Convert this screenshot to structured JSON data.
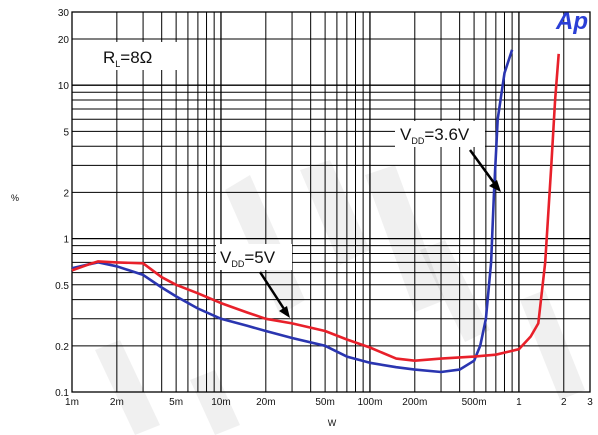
{
  "chart_data": {
    "type": "line",
    "title": "",
    "xlabel": "W",
    "ylabel": "%",
    "x_scale": "log",
    "y_scale": "log",
    "xlim": [
      0.001,
      3
    ],
    "ylim": [
      0.1,
      30
    ],
    "grid": true,
    "x_tick_labels": [
      {
        "value": 0.001,
        "label": "1m"
      },
      {
        "value": 0.002,
        "label": "2m"
      },
      {
        "value": 0.005,
        "label": "5m"
      },
      {
        "value": 0.01,
        "label": "10m"
      },
      {
        "value": 0.02,
        "label": "20m"
      },
      {
        "value": 0.05,
        "label": "50m"
      },
      {
        "value": 0.1,
        "label": "100m"
      },
      {
        "value": 0.2,
        "label": "200m"
      },
      {
        "value": 0.5,
        "label": "500m"
      },
      {
        "value": 1,
        "label": "1"
      },
      {
        "value": 2,
        "label": "2"
      },
      {
        "value": 3,
        "label": "3"
      }
    ],
    "y_tick_labels": [
      {
        "value": 0.1,
        "label": "0.1"
      },
      {
        "value": 0.2,
        "label": "0.2"
      },
      {
        "value": 0.5,
        "label": "0.5"
      },
      {
        "value": 1,
        "label": "1"
      },
      {
        "value": 2,
        "label": "2"
      },
      {
        "value": 5,
        "label": "5"
      },
      {
        "value": 10,
        "label": "10"
      },
      {
        "value": 20,
        "label": "20"
      },
      {
        "value": 30,
        "label": "30"
      }
    ],
    "series": [
      {
        "name": "VDD=5V",
        "color": "#e8202a",
        "points": [
          [
            0.001,
            0.62
          ],
          [
            0.0013,
            0.68
          ],
          [
            0.0015,
            0.71
          ],
          [
            0.002,
            0.7
          ],
          [
            0.003,
            0.69
          ],
          [
            0.004,
            0.56
          ],
          [
            0.005,
            0.5
          ],
          [
            0.007,
            0.44
          ],
          [
            0.01,
            0.38
          ],
          [
            0.015,
            0.33
          ],
          [
            0.02,
            0.3
          ],
          [
            0.03,
            0.28
          ],
          [
            0.05,
            0.25
          ],
          [
            0.07,
            0.22
          ],
          [
            0.1,
            0.195
          ],
          [
            0.15,
            0.165
          ],
          [
            0.2,
            0.16
          ],
          [
            0.3,
            0.165
          ],
          [
            0.5,
            0.17
          ],
          [
            0.7,
            0.175
          ],
          [
            1.0,
            0.19
          ],
          [
            1.2,
            0.23
          ],
          [
            1.35,
            0.28
          ],
          [
            1.5,
            0.7
          ],
          [
            1.65,
            3.0
          ],
          [
            1.75,
            8.0
          ],
          [
            1.85,
            16.0
          ]
        ]
      },
      {
        "name": "VDD=3.6V",
        "color": "#2a35b0",
        "points": [
          [
            0.001,
            0.64
          ],
          [
            0.0013,
            0.68
          ],
          [
            0.0015,
            0.7
          ],
          [
            0.002,
            0.66
          ],
          [
            0.003,
            0.58
          ],
          [
            0.004,
            0.48
          ],
          [
            0.005,
            0.42
          ],
          [
            0.007,
            0.35
          ],
          [
            0.01,
            0.3
          ],
          [
            0.015,
            0.27
          ],
          [
            0.02,
            0.25
          ],
          [
            0.03,
            0.225
          ],
          [
            0.05,
            0.2
          ],
          [
            0.07,
            0.17
          ],
          [
            0.1,
            0.155
          ],
          [
            0.15,
            0.145
          ],
          [
            0.2,
            0.14
          ],
          [
            0.3,
            0.135
          ],
          [
            0.4,
            0.14
          ],
          [
            0.5,
            0.16
          ],
          [
            0.55,
            0.2
          ],
          [
            0.6,
            0.3
          ],
          [
            0.65,
            0.7
          ],
          [
            0.68,
            2.0
          ],
          [
            0.72,
            6.0
          ],
          [
            0.8,
            12.0
          ],
          [
            0.9,
            17.0
          ]
        ]
      }
    ],
    "annotations": [
      {
        "main": "R",
        "sub": "L",
        "rest": "=8Ω"
      },
      {
        "main": "V",
        "sub": "DD",
        "rest": "=3.6V",
        "series": "VDD=3.6V"
      },
      {
        "main": "V",
        "sub": "DD",
        "rest": "=5V",
        "series": "VDD=5V"
      }
    ],
    "logo_text": "Ap"
  }
}
